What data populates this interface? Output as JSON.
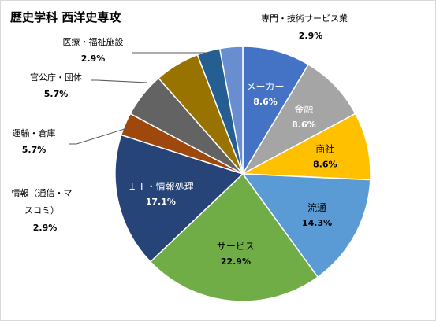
{
  "chart_data": {
    "type": "pie",
    "title": "歴史学科 西洋史専攻",
    "slices": [
      {
        "label": "メーカー",
        "value_label": "8.6%",
        "value": 8.6,
        "color": "#4472c4",
        "text_color": "#ffffff"
      },
      {
        "label": "金融",
        "value_label": "8.6%",
        "value": 8.6,
        "color": "#a5a5a5",
        "text_color": "#ffffff"
      },
      {
        "label": "商社",
        "value_label": "8.6%",
        "value": 8.6,
        "color": "#ffc000",
        "text_color": "#000000"
      },
      {
        "label": "流通",
        "value_label": "14.3%",
        "value": 14.3,
        "color": "#5b9bd5",
        "text_color": "#000000"
      },
      {
        "label": "サービス",
        "value_label": "22.9%",
        "value": 22.9,
        "color": "#70ad47",
        "text_color": "#000000"
      },
      {
        "label": "ＩＴ・情報処理",
        "value_label": "17.1%",
        "value": 17.1,
        "color": "#264478",
        "text_color": "#ffffff"
      },
      {
        "label_lines": [
          "情報（通信・マ",
          "スコミ）"
        ],
        "value_label": "2.9%",
        "value": 2.9,
        "color": "#9e480e",
        "outside": true
      },
      {
        "label": "運輸・倉庫",
        "value_label": "5.7%",
        "value": 5.7,
        "color": "#636363",
        "outside": true
      },
      {
        "label": "官公庁・団体",
        "value_label": "5.7%",
        "value": 5.7,
        "color": "#997300",
        "outside": true
      },
      {
        "label": "医療・福祉施設",
        "value_label": "2.9%",
        "value": 2.9,
        "color": "#255e91",
        "outside": true
      },
      {
        "label": "専門・技術サービス業",
        "value_label": "2.9%",
        "value": 2.9,
        "color": "#698ed0",
        "outside": true
      }
    ],
    "start_angle_deg": 0,
    "direction": "clockwise",
    "legend": "none",
    "data_labels": "category and percentage"
  }
}
